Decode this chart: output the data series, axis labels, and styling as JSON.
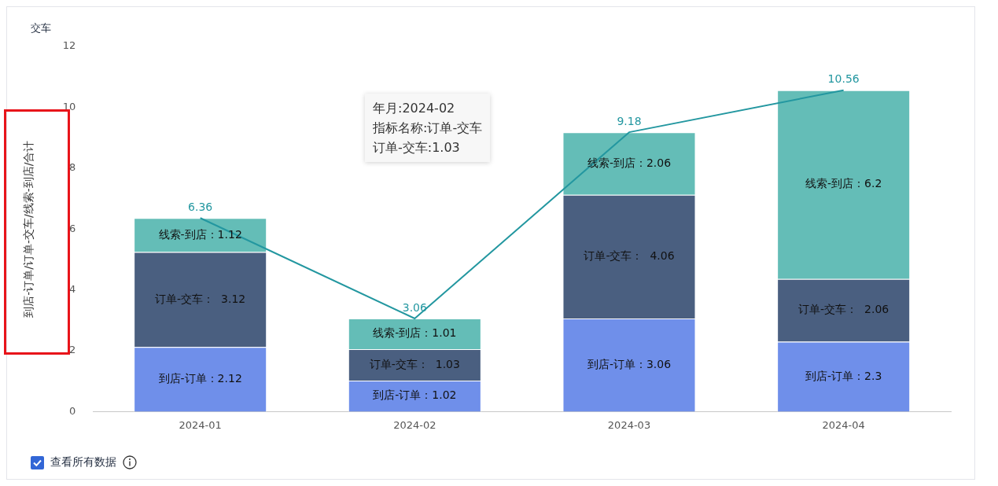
{
  "chart_data": {
    "type": "bar",
    "stacked": true,
    "ylabel": "到店-订单/订单-交车/线索-到店/合计",
    "categories": [
      "2024-01",
      "2024-02",
      "2024-03",
      "2024-04"
    ],
    "series": [
      {
        "name": "到店-订单",
        "color": "#6f8fea",
        "values": [
          2.12,
          1.02,
          3.06,
          2.3
        ],
        "value_labels": [
          "：2.12",
          "：1.02",
          "：3.06",
          "：2.3"
        ]
      },
      {
        "name": "订单-交车",
        "color": "#4a5f80",
        "values": [
          3.12,
          1.03,
          4.06,
          2.06
        ],
        "value_labels": [
          "：  3.12",
          "：  1.03",
          "：  4.06",
          "：  2.06"
        ]
      },
      {
        "name": "线索-到店",
        "color": "#64bdb7",
        "values": [
          1.12,
          1.01,
          2.06,
          6.2
        ],
        "value_labels": [
          "：1.12",
          "：1.01",
          "：2.06",
          "：6.2"
        ]
      },
      {
        "type": "line",
        "color": "#2397a0",
        "values": [
          6.36,
          3.06,
          9.18,
          10.56
        ],
        "value_labels": [
          "6.36",
          "3.06",
          "9.18",
          "10.56"
        ]
      }
    ],
    "ylim": [
      0,
      12
    ],
    "yticks": [
      0,
      2,
      4,
      6,
      8,
      10,
      12
    ],
    "grid": false,
    "legend": false,
    "marker": "none",
    "annotations": [
      "交车",
      "年月:2024-02",
      "指标名称:订单-交车",
      "订单-交车:1.03",
      "查看所有数据"
    ]
  }
}
